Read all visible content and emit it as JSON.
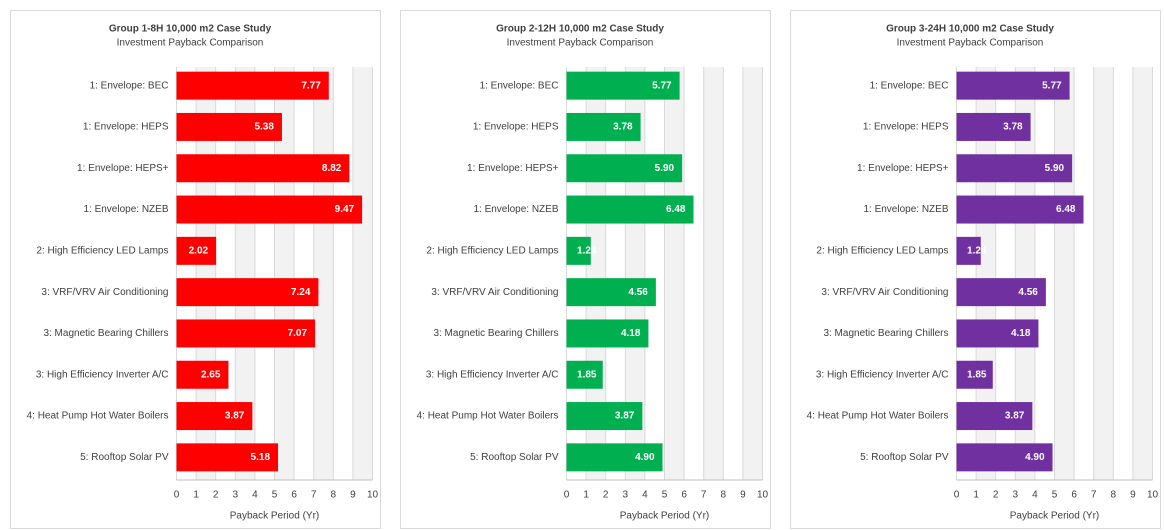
{
  "chart_data": [
    {
      "type": "bar",
      "orientation": "horizontal",
      "title": "Group 1-8H 10,000 m2 Case Study",
      "subtitle": "Investment Payback Comparison",
      "categories": [
        "1: Envelope: BEC",
        "1: Envelope: HEPS",
        "1: Envelope: HEPS+",
        "1: Envelope: NZEB",
        "2: High Efficiency LED Lamps",
        "3: VRF/VRV Air Conditioning",
        "3: Magnetic Bearing Chillers",
        "3: High Efficiency Inverter A/C",
        "4: Heat Pump Hot Water Boilers",
        "5: Rooftop Solar PV"
      ],
      "values": [
        7.77,
        5.38,
        8.82,
        9.47,
        2.02,
        7.24,
        7.07,
        2.65,
        3.87,
        5.18
      ],
      "value_labels": [
        "7.77",
        "5.38",
        "8.82",
        "9.47",
        "2.02",
        "7.24",
        "7.07",
        "2.65",
        "3.87",
        "5.18"
      ],
      "color": "#ff0000",
      "xlabel": "Payback Period (Yr)",
      "xlim": [
        0,
        10
      ],
      "xticks": [
        0,
        1,
        2,
        3,
        4,
        5,
        6,
        7,
        8,
        9,
        10
      ],
      "grid": true
    },
    {
      "type": "bar",
      "orientation": "horizontal",
      "title": "Group 2-12H 10,000 m2 Case Study",
      "subtitle": "Investment Payback Comparison",
      "categories": [
        "1: Envelope: BEC",
        "1: Envelope: HEPS",
        "1: Envelope: HEPS+",
        "1: Envelope: NZEB",
        "2: High Efficiency LED Lamps",
        "3: VRF/VRV Air Conditioning",
        "3: Magnetic Bearing Chillers",
        "3: High Efficiency Inverter A/C",
        "4: Heat Pump Hot Water Boilers",
        "5: Rooftop Solar PV"
      ],
      "values": [
        5.77,
        3.78,
        5.9,
        6.48,
        1.24,
        4.56,
        4.18,
        1.85,
        3.87,
        4.9
      ],
      "value_labels": [
        "5.77",
        "3.78",
        "5.90",
        "6.48",
        "1.24",
        "4.56",
        "4.18",
        "1.85",
        "3.87",
        "4.90"
      ],
      "color": "#00b050",
      "xlabel": "Payback Period (Yr)",
      "xlim": [
        0,
        10
      ],
      "xticks": [
        0,
        1,
        2,
        3,
        4,
        5,
        6,
        7,
        8,
        9,
        10
      ],
      "grid": true
    },
    {
      "type": "bar",
      "orientation": "horizontal",
      "title": "Group 3-24H 10,000 m2 Case Study",
      "subtitle": "Investment Payback Comparison",
      "categories": [
        "1: Envelope: BEC",
        "1: Envelope: HEPS",
        "1: Envelope: HEPS+",
        "1: Envelope: NZEB",
        "2: High Efficiency LED Lamps",
        "3: VRF/VRV Air Conditioning",
        "3: Magnetic Bearing Chillers",
        "3: High Efficiency Inverter A/C",
        "4: Heat Pump Hot Water Boilers",
        "5: Rooftop Solar PV"
      ],
      "values": [
        5.77,
        3.78,
        5.9,
        6.48,
        1.24,
        4.56,
        4.18,
        1.85,
        3.87,
        4.9
      ],
      "value_labels": [
        "5.77",
        "3.78",
        "5.90",
        "6.48",
        "1.24",
        "4.56",
        "4.18",
        "1.85",
        "3.87",
        "4.90"
      ],
      "color": "#7030a0",
      "xlabel": "Payback Period (Yr)",
      "xlim": [
        0,
        10
      ],
      "xticks": [
        0,
        1,
        2,
        3,
        4,
        5,
        6,
        7,
        8,
        9,
        10
      ],
      "grid": true
    }
  ]
}
